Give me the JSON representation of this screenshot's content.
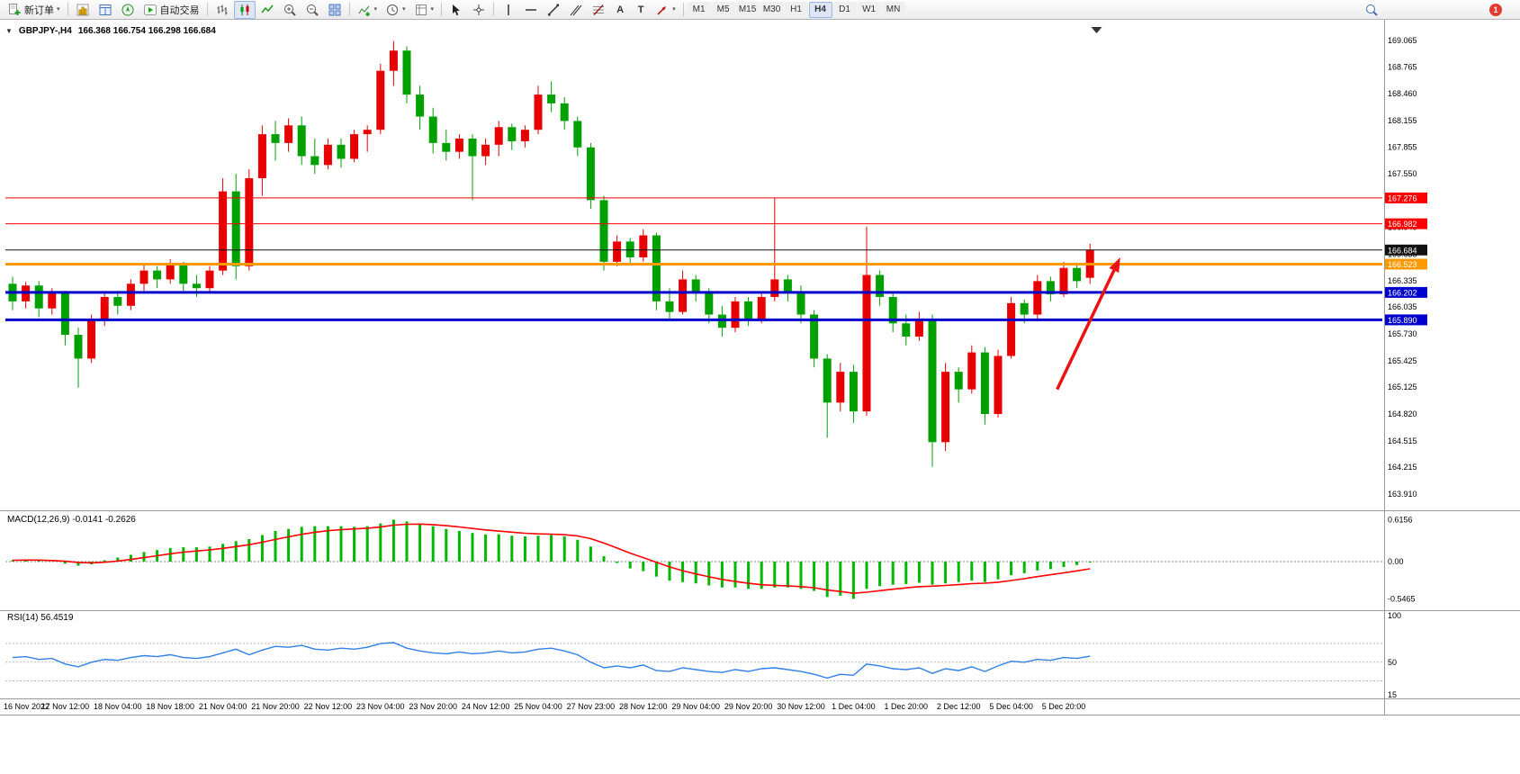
{
  "icons": {
    "caret": "▾",
    "one_click": "▼",
    "letter_a": "A",
    "letter_t": "T"
  },
  "toolbar": {
    "new_order_label": "新订单",
    "autotrading_label": "自动交易",
    "timeframes": [
      "M1",
      "M5",
      "M15",
      "M30",
      "H1",
      "H4",
      "D1",
      "W1",
      "MN"
    ],
    "active_timeframe": "H4",
    "notification_count": "1"
  },
  "chart": {
    "title": "GBPJPY-,H4",
    "ohlc": "166.368 166.754 166.298 166.684",
    "macd_label": "MACD(12,26,9) -0.0141 -0.2626",
    "rsi_label": "RSI(14) 56.4519"
  },
  "chart_data": {
    "type": "candlestick",
    "symbol": "GBPJPY-",
    "period": "H4",
    "title": "GBPJPY-,H4 166.368 166.754 166.298 166.684",
    "ylim": [
      163.736,
      169.218
    ],
    "colors": {
      "up": "#e80000",
      "down": "#00a000",
      "macd_hist": "#00b800",
      "macd_signal": "#ff0000",
      "rsi_line": "#3080e8",
      "hline_red": "#ff0000",
      "hline_orange": "#ff9900",
      "hline_blue": "#0000cc",
      "current_price": "#111111",
      "arrow": "#ee1111"
    },
    "candles": [
      [
        166.3,
        166.38,
        166.0,
        166.1
      ],
      [
        166.1,
        166.32,
        166.02,
        166.28
      ],
      [
        166.28,
        166.33,
        165.92,
        166.02
      ],
      [
        166.02,
        166.25,
        165.95,
        166.2
      ],
      [
        166.2,
        166.22,
        165.6,
        165.72
      ],
      [
        165.72,
        165.8,
        165.12,
        165.45
      ],
      [
        165.45,
        165.95,
        165.4,
        165.88
      ],
      [
        165.88,
        166.2,
        165.82,
        166.15
      ],
      [
        166.15,
        166.22,
        165.95,
        166.05
      ],
      [
        166.05,
        166.35,
        166.0,
        166.3
      ],
      [
        166.3,
        166.52,
        166.22,
        166.45
      ],
      [
        166.45,
        166.5,
        166.25,
        166.35
      ],
      [
        166.35,
        166.58,
        166.3,
        166.52
      ],
      [
        166.52,
        166.55,
        166.22,
        166.3
      ],
      [
        166.3,
        166.4,
        166.15,
        166.25
      ],
      [
        166.25,
        166.5,
        166.2,
        166.45
      ],
      [
        166.45,
        167.5,
        166.4,
        167.35
      ],
      [
        167.35,
        167.55,
        166.35,
        166.5
      ],
      [
        166.5,
        167.6,
        166.45,
        167.5
      ],
      [
        167.5,
        168.1,
        167.3,
        168.0
      ],
      [
        168.0,
        168.15,
        167.7,
        167.9
      ],
      [
        167.9,
        168.18,
        167.8,
        168.1
      ],
      [
        168.1,
        168.2,
        167.65,
        167.75
      ],
      [
        167.75,
        167.95,
        167.55,
        167.65
      ],
      [
        167.65,
        167.95,
        167.6,
        167.88
      ],
      [
        167.88,
        167.95,
        167.62,
        167.72
      ],
      [
        167.72,
        168.05,
        167.68,
        168.0
      ],
      [
        168.0,
        168.1,
        167.8,
        168.05
      ],
      [
        168.05,
        168.8,
        168.0,
        168.72
      ],
      [
        168.72,
        169.06,
        168.55,
        168.95
      ],
      [
        168.95,
        169.0,
        168.35,
        168.45
      ],
      [
        168.45,
        168.55,
        168.05,
        168.2
      ],
      [
        168.2,
        168.3,
        167.78,
        167.9
      ],
      [
        167.9,
        168.05,
        167.7,
        167.8
      ],
      [
        167.8,
        168.0,
        167.72,
        167.95
      ],
      [
        167.95,
        168.0,
        167.25,
        167.75
      ],
      [
        167.75,
        167.95,
        167.65,
        167.88
      ],
      [
        167.88,
        168.15,
        167.75,
        168.08
      ],
      [
        168.08,
        168.12,
        167.82,
        167.92
      ],
      [
        167.92,
        168.1,
        167.85,
        168.05
      ],
      [
        168.05,
        168.55,
        168.0,
        168.45
      ],
      [
        168.45,
        168.6,
        168.25,
        168.35
      ],
      [
        168.35,
        168.42,
        168.05,
        168.15
      ],
      [
        168.15,
        168.2,
        167.75,
        167.85
      ],
      [
        167.85,
        167.9,
        167.15,
        167.25
      ],
      [
        167.25,
        167.3,
        166.45,
        166.55
      ],
      [
        166.55,
        166.85,
        166.5,
        166.78
      ],
      [
        166.78,
        166.82,
        166.52,
        166.6
      ],
      [
        166.6,
        166.92,
        166.55,
        166.85
      ],
      [
        166.85,
        166.88,
        166.0,
        166.1
      ],
      [
        166.1,
        166.25,
        165.9,
        165.98
      ],
      [
        165.98,
        166.45,
        165.95,
        166.35
      ],
      [
        166.35,
        166.4,
        166.1,
        166.2
      ],
      [
        166.2,
        166.25,
        165.85,
        165.95
      ],
      [
        165.95,
        166.05,
        165.7,
        165.8
      ],
      [
        165.8,
        166.15,
        165.75,
        166.1
      ],
      [
        166.1,
        166.15,
        165.82,
        165.9
      ],
      [
        165.9,
        166.2,
        165.85,
        166.15
      ],
      [
        166.15,
        167.28,
        166.1,
        166.35
      ],
      [
        166.35,
        166.4,
        166.1,
        166.2
      ],
      [
        166.2,
        166.28,
        165.85,
        165.95
      ],
      [
        165.95,
        166.0,
        165.35,
        165.45
      ],
      [
        165.45,
        165.5,
        164.55,
        164.95
      ],
      [
        164.95,
        165.4,
        164.85,
        165.3
      ],
      [
        165.3,
        165.38,
        164.72,
        164.85
      ],
      [
        164.85,
        166.95,
        164.8,
        166.4
      ],
      [
        166.4,
        166.45,
        166.05,
        166.15
      ],
      [
        166.15,
        166.2,
        165.75,
        165.85
      ],
      [
        165.85,
        165.95,
        165.6,
        165.7
      ],
      [
        165.7,
        165.98,
        165.65,
        165.9
      ],
      [
        165.9,
        165.95,
        164.22,
        164.5
      ],
      [
        164.5,
        165.4,
        164.4,
        165.3
      ],
      [
        165.3,
        165.35,
        164.95,
        165.1
      ],
      [
        165.1,
        165.6,
        165.05,
        165.52
      ],
      [
        165.52,
        165.58,
        164.7,
        164.82
      ],
      [
        164.82,
        165.55,
        164.78,
        165.48
      ],
      [
        165.48,
        166.15,
        165.45,
        166.08
      ],
      [
        166.08,
        166.12,
        165.85,
        165.95
      ],
      [
        165.95,
        166.4,
        165.9,
        166.33
      ],
      [
        166.33,
        166.38,
        166.1,
        166.18
      ],
      [
        166.18,
        166.55,
        166.15,
        166.48
      ],
      [
        166.48,
        166.52,
        166.25,
        166.33
      ],
      [
        166.368,
        166.754,
        166.298,
        166.684
      ]
    ],
    "label_every": 4,
    "time_labels": [
      "16 Nov 2022",
      "17 Nov 12:00",
      "18 Nov 04:00",
      "18 Nov 18:00",
      "21 Nov 04:00",
      "21 Nov 20:00",
      "22 Nov 12:00",
      "23 Nov 04:00",
      "23 Nov 20:00",
      "24 Nov 12:00",
      "25 Nov 04:00",
      "27 Nov 23:00",
      "28 Nov 12:00",
      "29 Nov 04:00",
      "29 Nov 20:00",
      "30 Nov 12:00",
      "1 Dec 04:00",
      "1 Dec 20:00",
      "2 Dec 12:00",
      "5 Dec 04:00",
      "5 Dec 20:00"
    ],
    "price_ticks": [
      169.065,
      168.765,
      168.46,
      168.155,
      167.855,
      167.55,
      167.245,
      166.94,
      166.635,
      166.335,
      166.035,
      165.73,
      165.425,
      165.125,
      164.82,
      164.515,
      164.215,
      163.91
    ],
    "hlines": [
      {
        "price": 167.276,
        "color": "#ff0000",
        "width": 1
      },
      {
        "price": 166.982,
        "color": "#ff0000",
        "width": 1
      },
      {
        "price": 166.684,
        "color": "#111111",
        "width": 1
      },
      {
        "price": 166.523,
        "color": "#ff9900",
        "width": 3
      },
      {
        "price": 166.202,
        "color": "#0000cc",
        "width": 3
      },
      {
        "price": 165.89,
        "color": "#0000cc",
        "width": 3
      }
    ],
    "shift_marker_index": 82.5,
    "arrow": {
      "from": {
        "index": 79.5,
        "price": 165.1
      },
      "to": {
        "index": 84.3,
        "price": 166.6
      },
      "color": "#ee1111"
    },
    "macd": {
      "label": "MACD(12,26,9) -0.0141 -0.2626",
      "values": [
        0.02,
        0.03,
        0.02,
        0.0,
        -0.03,
        -0.06,
        -0.04,
        0.02,
        0.06,
        0.1,
        0.14,
        0.17,
        0.2,
        0.21,
        0.21,
        0.22,
        0.26,
        0.3,
        0.33,
        0.39,
        0.45,
        0.48,
        0.51,
        0.52,
        0.52,
        0.52,
        0.51,
        0.52,
        0.56,
        0.6156,
        0.59,
        0.56,
        0.52,
        0.48,
        0.45,
        0.42,
        0.4,
        0.4,
        0.38,
        0.37,
        0.38,
        0.39,
        0.37,
        0.32,
        0.22,
        0.08,
        -0.02,
        -0.1,
        -0.14,
        -0.22,
        -0.28,
        -0.3,
        -0.32,
        -0.35,
        -0.38,
        -0.38,
        -0.4,
        -0.4,
        -0.38,
        -0.38,
        -0.4,
        -0.43,
        -0.52,
        -0.5,
        -0.5465,
        -0.4,
        -0.36,
        -0.34,
        -0.33,
        -0.31,
        -0.34,
        -0.32,
        -0.3,
        -0.28,
        -0.3,
        -0.26,
        -0.2,
        -0.17,
        -0.13,
        -0.11,
        -0.08,
        -0.05,
        -0.0141
      ],
      "ticks": [
        {
          "v": 0.6156,
          "t": "0.6156"
        },
        {
          "v": 0,
          "t": "0.00"
        },
        {
          "v": -0.5465,
          "t": "-0.5465"
        }
      ]
    },
    "rsi": {
      "label": "RSI(14) 56.4519",
      "values": [
        55,
        56,
        53,
        54,
        48,
        45,
        50,
        53,
        52,
        55,
        57,
        56,
        58,
        55,
        54,
        56,
        60,
        64,
        58,
        63,
        67,
        66,
        68,
        64,
        63,
        65,
        64,
        66,
        70,
        71,
        65,
        62,
        60,
        59,
        61,
        59,
        60,
        62,
        60,
        61,
        64,
        65,
        62,
        58,
        50,
        44,
        46,
        44,
        47,
        41,
        40,
        44,
        42,
        40,
        39,
        42,
        40,
        43,
        44,
        42,
        40,
        37,
        33,
        37,
        36,
        48,
        46,
        43,
        42,
        44,
        38,
        43,
        41,
        45,
        40,
        46,
        51,
        50,
        53,
        52,
        55,
        54,
        56.4519
      ],
      "ticks": [
        {
          "v": 100,
          "t": "100"
        },
        {
          "v": 50,
          "t": "50"
        },
        {
          "v": 15,
          "t": "15"
        }
      ],
      "levels": [
        70,
        50,
        30
      ]
    }
  }
}
